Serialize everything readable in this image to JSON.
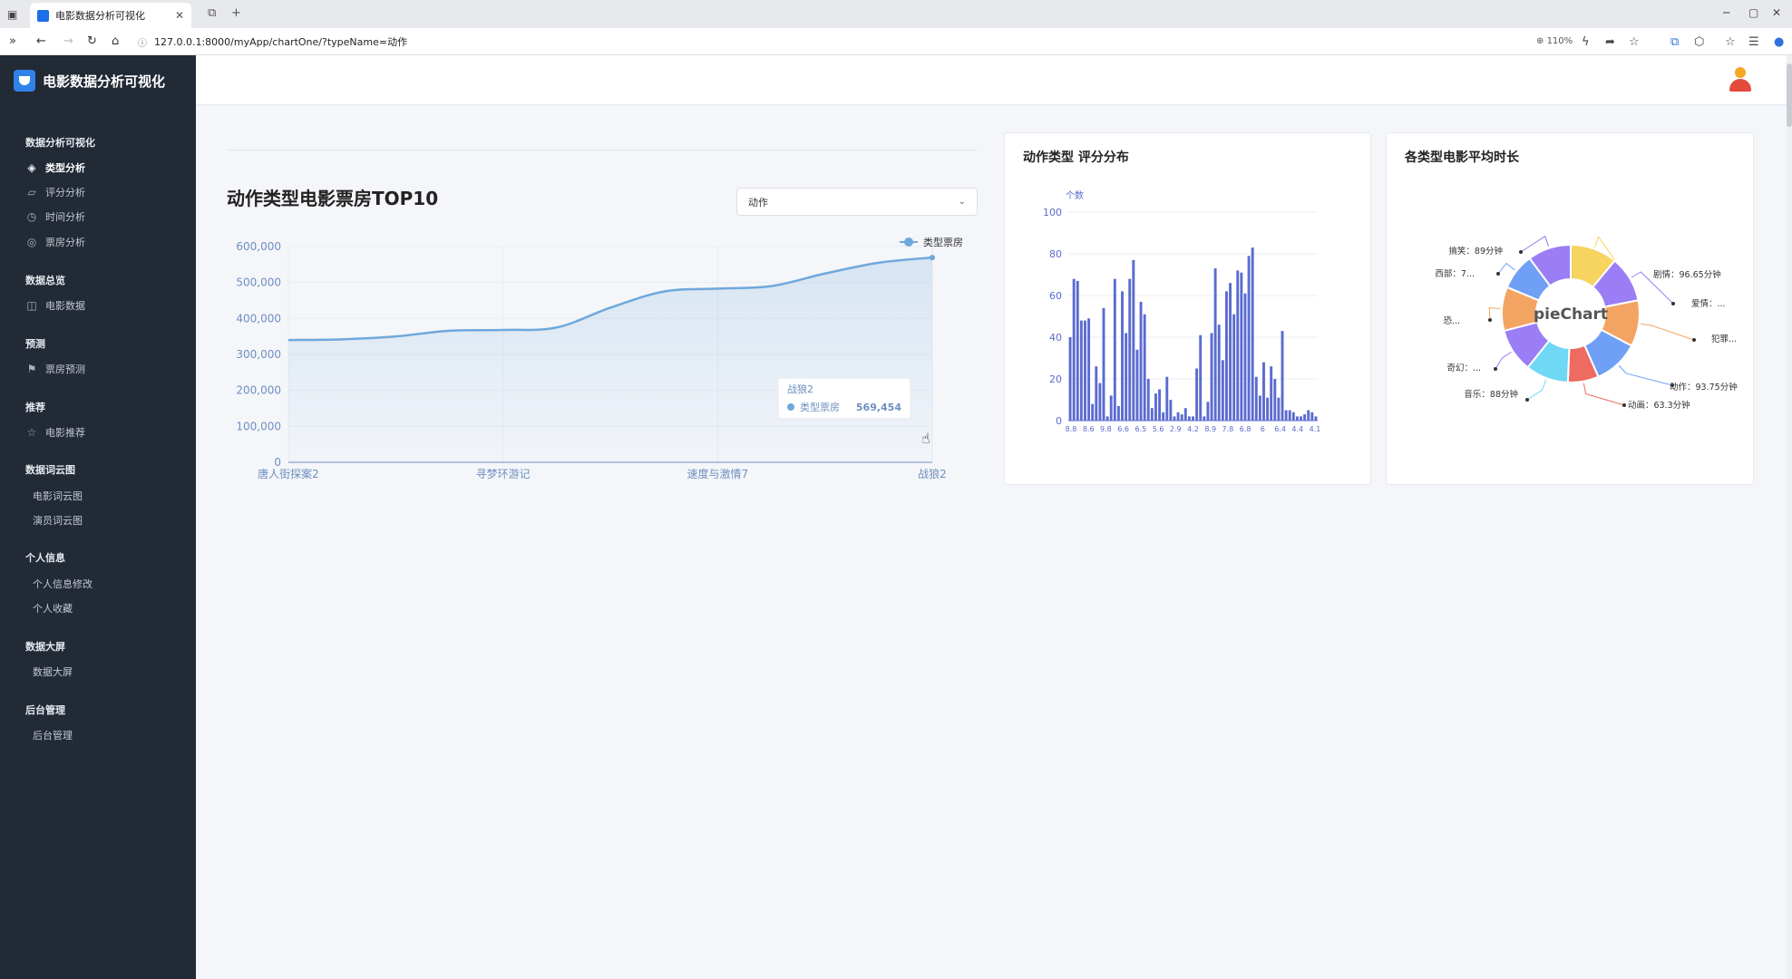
{
  "browser": {
    "tab_title": "电影数据分析可视化",
    "url": "127.0.0.1:8000/myApp/chartOne/?typeName=动作",
    "zoom": "110%"
  },
  "sidebar": {
    "brand": "电影数据分析可视化",
    "sections": [
      {
        "title": "数据分析可视化",
        "items": [
          {
            "label": "类型分析",
            "icon": "layers-icon",
            "active": true
          },
          {
            "label": "评分分析",
            "icon": "rating-icon"
          },
          {
            "label": "时间分析",
            "icon": "clock-icon"
          },
          {
            "label": "票房分析",
            "icon": "box-office-icon"
          }
        ]
      },
      {
        "title": "数据总览",
        "items": [
          {
            "label": "电影数据",
            "icon": "book-icon"
          }
        ]
      },
      {
        "title": "预测",
        "items": [
          {
            "label": "票房预测",
            "icon": "flag-icon"
          }
        ]
      },
      {
        "title": "推荐",
        "items": [
          {
            "label": "电影推荐",
            "icon": "star-icon"
          }
        ]
      },
      {
        "title": "数据词云图",
        "items": [
          {
            "label": "电影词云图"
          },
          {
            "label": "演员词云图"
          }
        ]
      },
      {
        "title": "个人信息",
        "items": [
          {
            "label": "个人信息修改"
          },
          {
            "label": "个人收藏"
          }
        ]
      },
      {
        "title": "数据大屏",
        "items": [
          {
            "label": "数据大屏"
          }
        ]
      },
      {
        "title": "后台管理",
        "items": [
          {
            "label": "后台管理"
          }
        ]
      }
    ]
  },
  "main": {
    "title": "动作类型电影票房TOP10",
    "select_value": "动作"
  },
  "cards": {
    "rating_title": "动作类型 评分分布",
    "duration_title": "各类型电影平均时长"
  },
  "chart_data": [
    {
      "type": "line",
      "title": "动作类型电影票房TOP10",
      "legend": [
        "类型票房"
      ],
      "legend_position": "top-right",
      "categories": [
        "唐人街探案2",
        "",
        "",
        "",
        "寻梦环游记",
        "",
        "",
        "",
        "速度与激情7",
        "",
        "",
        "",
        "战狼2"
      ],
      "x_tick_labels": [
        "唐人街探案2",
        "寻梦环游记",
        "速度与激情7",
        "战狼2"
      ],
      "series": [
        {
          "name": "类型票房",
          "values": [
            340000,
            342000,
            350000,
            366000,
            368000,
            375000,
            430000,
            475000,
            483000,
            490000,
            525000,
            555000,
            569454
          ]
        }
      ],
      "ylim": [
        0,
        600000
      ],
      "y_ticks": [
        "0",
        "100,000",
        "200,000",
        "300,000",
        "400,000",
        "500,000",
        "600,000"
      ],
      "smooth": true,
      "area": true,
      "color": "#6fa8dc",
      "tooltip": {
        "title": "战狼2",
        "series": "类型票房",
        "value": "569,454"
      }
    },
    {
      "type": "bar",
      "title": "动作类型 评分分布",
      "ylabel": "个数",
      "ylim": [
        0,
        100
      ],
      "y_ticks": [
        "0",
        "20",
        "40",
        "60",
        "80",
        "100"
      ],
      "x_tick_labels": [
        "8.8",
        "8.6",
        "9.8",
        "6.6",
        "6.5",
        "5.6",
        "2.9",
        "4.2",
        "8.9",
        "7.8",
        "6.8",
        "6",
        "6.4",
        "4.4",
        "4.1"
      ],
      "values": [
        40,
        68,
        67,
        48,
        48,
        49,
        8,
        26,
        18,
        54,
        2,
        12,
        68,
        7,
        62,
        42,
        68,
        77,
        34,
        57,
        51,
        20,
        6,
        13,
        15,
        4,
        21,
        10,
        2,
        4,
        3,
        6,
        2,
        2,
        25,
        41,
        2,
        9,
        42,
        73,
        46,
        29,
        62,
        66,
        51,
        72,
        71,
        61,
        79,
        83,
        21,
        12,
        28,
        11,
        26,
        20,
        11,
        43,
        5,
        5,
        4,
        2,
        2,
        3,
        5,
        4,
        2
      ],
      "color": "#5b6bd0"
    },
    {
      "type": "pie",
      "title": "各类型电影平均时长",
      "center_label": "pieChart",
      "slices": [
        {
          "label": "剧情：96.65分钟",
          "value": 96.65,
          "color": "#f7d35f"
        },
        {
          "label": "爱情：...",
          "value": 95,
          "color": "#9b7ef5"
        },
        {
          "label": "犯罪...",
          "value": 95,
          "color": "#f4a462"
        },
        {
          "label": "动作：93.75分钟",
          "value": 93.75,
          "color": "#6fa0f5"
        },
        {
          "label": "动画：63.3分钟",
          "value": 63.3,
          "color": "#ee6b61"
        },
        {
          "label": "音乐：88分钟",
          "value": 88,
          "color": "#6fd8f5"
        },
        {
          "label": "奇幻：...",
          "value": 90,
          "color": "#9b7ef5"
        },
        {
          "label": "恐...",
          "value": 90,
          "color": "#f4a462"
        },
        {
          "label": "西部：7...",
          "value": 75,
          "color": "#6fa0f5"
        },
        {
          "label": "搞笑：89分钟",
          "value": 89,
          "color": "#9b7ef5"
        }
      ]
    }
  ]
}
